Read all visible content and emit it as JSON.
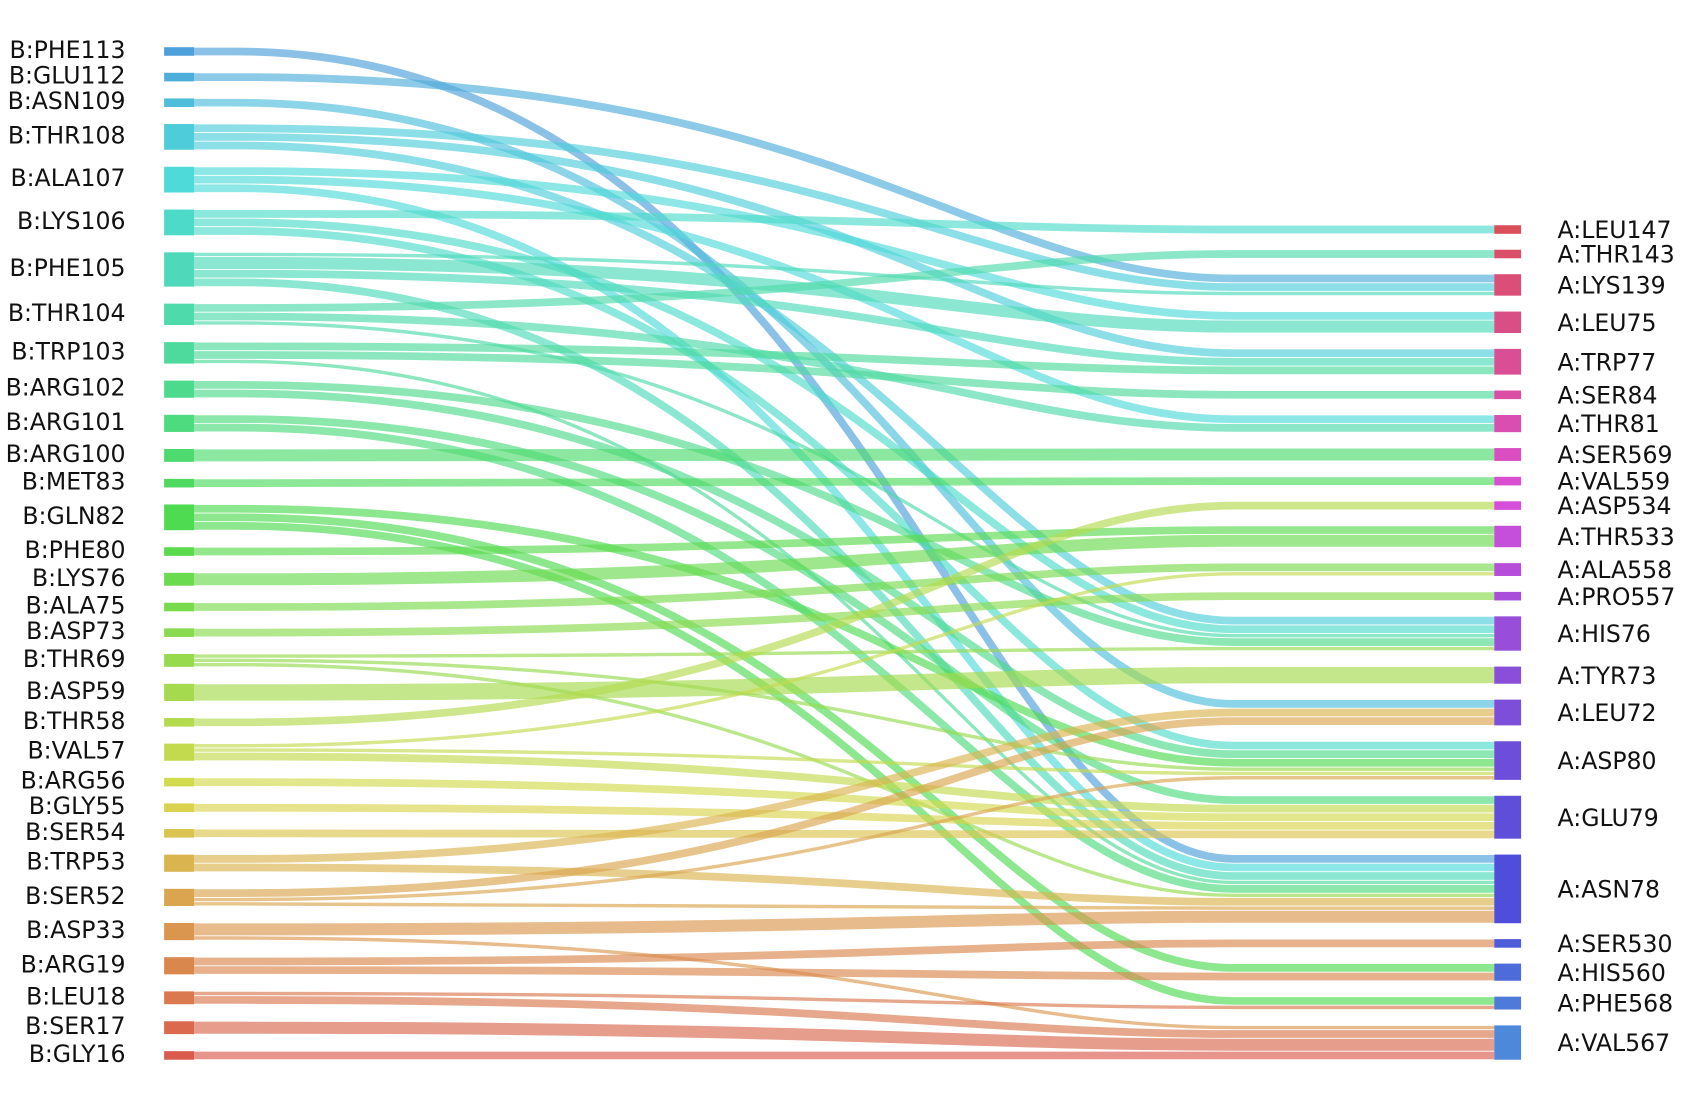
{
  "left_nodes": [
    {
      "label": "B:PHE113"
    },
    {
      "label": "B:GLU112"
    },
    {
      "label": "B:ASN109"
    },
    {
      "label": "B:THR108"
    },
    {
      "label": "B:ALA107"
    },
    {
      "label": "B:LYS106"
    },
    {
      "label": "B:PHE105"
    },
    {
      "label": "B:THR104"
    },
    {
      "label": "B:TRP103"
    },
    {
      "label": "B:ARG102"
    },
    {
      "label": "B:ARG101"
    },
    {
      "label": "B:ARG100"
    },
    {
      "label": "B:MET83"
    },
    {
      "label": "B:GLN82"
    },
    {
      "label": "B:PHE80"
    },
    {
      "label": "B:LYS76"
    },
    {
      "label": "B:ALA75"
    },
    {
      "label": "B:ASP73"
    },
    {
      "label": "B:THR69"
    },
    {
      "label": "B:ASP59"
    },
    {
      "label": "B:THR58"
    },
    {
      "label": "B:VAL57"
    },
    {
      "label": "B:ARG56"
    },
    {
      "label": "B:GLY55"
    },
    {
      "label": "B:SER54"
    },
    {
      "label": "B:TRP53"
    },
    {
      "label": "B:SER52"
    },
    {
      "label": "B:ASP33"
    },
    {
      "label": "B:ARG19"
    },
    {
      "label": "B:LEU18"
    },
    {
      "label": "B:SER17"
    },
    {
      "label": "B:GLY16"
    }
  ],
  "right_nodes": [
    {
      "label": "A:LEU147"
    },
    {
      "label": "A:THR143"
    },
    {
      "label": "A:LYS139"
    },
    {
      "label": "A:LEU75"
    },
    {
      "label": "A:TRP77"
    },
    {
      "label": "A:SER84"
    },
    {
      "label": "A:THR81"
    },
    {
      "label": "A:SER569"
    },
    {
      "label": "A:VAL559"
    },
    {
      "label": "A:ASP534"
    },
    {
      "label": "A:THR533"
    },
    {
      "label": "A:ALA558"
    },
    {
      "label": "A:PRO557"
    },
    {
      "label": "A:HIS76"
    },
    {
      "label": "A:TYR73"
    },
    {
      "label": "A:LEU72"
    },
    {
      "label": "A:ASP80"
    },
    {
      "label": "A:GLU79"
    },
    {
      "label": "A:ASN78"
    },
    {
      "label": "A:SER530"
    },
    {
      "label": "A:HIS560"
    },
    {
      "label": "A:PHE568"
    },
    {
      "label": "A:VAL567"
    }
  ],
  "links": [
    {
      "from": "B:PHE113",
      "to": "A:ASN78",
      "weight": 2
    },
    {
      "from": "B:GLU112",
      "to": "A:LYS139",
      "weight": 2
    },
    {
      "from": "B:ASN109",
      "to": "A:LEU72",
      "weight": 2
    },
    {
      "from": "B:THR108",
      "to": "A:LYS139",
      "weight": 2
    },
    {
      "from": "B:THR108",
      "to": "A:TRP77",
      "weight": 2
    },
    {
      "from": "B:THR108",
      "to": "A:HIS76",
      "weight": 2
    },
    {
      "from": "B:ALA107",
      "to": "A:LEU75",
      "weight": 2
    },
    {
      "from": "B:ALA107",
      "to": "A:THR81",
      "weight": 2
    },
    {
      "from": "B:ALA107",
      "to": "A:ASN78",
      "weight": 2
    },
    {
      "from": "B:LYS106",
      "to": "A:LEU147",
      "weight": 2
    },
    {
      "from": "B:LYS106",
      "to": "A:HIS76",
      "weight": 2
    },
    {
      "from": "B:LYS106",
      "to": "A:ASP80",
      "weight": 2
    },
    {
      "from": "B:PHE105",
      "to": "A:LYS139",
      "weight": 1
    },
    {
      "from": "B:PHE105",
      "to": "A:LEU75",
      "weight": 3
    },
    {
      "from": "B:PHE105",
      "to": "A:TRP77",
      "weight": 2
    },
    {
      "from": "B:PHE105",
      "to": "A:ASN78",
      "weight": 2
    },
    {
      "from": "B:THR104",
      "to": "A:THR143",
      "weight": 2
    },
    {
      "from": "B:THR104",
      "to": "A:THR81",
      "weight": 2
    },
    {
      "from": "B:THR104",
      "to": "A:HIS76",
      "weight": 1
    },
    {
      "from": "B:TRP103",
      "to": "A:TRP77",
      "weight": 2
    },
    {
      "from": "B:TRP103",
      "to": "A:SER84",
      "weight": 2
    },
    {
      "from": "B:TRP103",
      "to": "A:ASN78",
      "weight": 1
    },
    {
      "from": "B:ARG102",
      "to": "A:HIS76",
      "weight": 2
    },
    {
      "from": "B:ARG102",
      "to": "A:ASP80",
      "weight": 2
    },
    {
      "from": "B:ARG101",
      "to": "A:ASN78",
      "weight": 2
    },
    {
      "from": "B:ARG101",
      "to": "A:GLU79",
      "weight": 2
    },
    {
      "from": "B:ARG100",
      "to": "A:SER569",
      "weight": 3
    },
    {
      "from": "B:MET83",
      "to": "A:VAL559",
      "weight": 2
    },
    {
      "from": "B:GLN82",
      "to": "A:ASP80",
      "weight": 2
    },
    {
      "from": "B:GLN82",
      "to": "A:HIS560",
      "weight": 2
    },
    {
      "from": "B:GLN82",
      "to": "A:PHE568",
      "weight": 2
    },
    {
      "from": "B:PHE80",
      "to": "A:THR533",
      "weight": 2
    },
    {
      "from": "B:LYS76",
      "to": "A:THR533",
      "weight": 3
    },
    {
      "from": "B:ALA75",
      "to": "A:ALA558",
      "weight": 2
    },
    {
      "from": "B:ASP73",
      "to": "A:PRO557",
      "weight": 2
    },
    {
      "from": "B:THR69",
      "to": "A:HIS76",
      "weight": 1
    },
    {
      "from": "B:THR69",
      "to": "A:ASP80",
      "weight": 1
    },
    {
      "from": "B:THR69",
      "to": "A:ASN78",
      "weight": 1
    },
    {
      "from": "B:ASP59",
      "to": "A:TYR73",
      "weight": 4
    },
    {
      "from": "B:THR58",
      "to": "A:ASP534",
      "weight": 2
    },
    {
      "from": "B:VAL57",
      "to": "A:ALA558",
      "weight": 1
    },
    {
      "from": "B:VAL57",
      "to": "A:GLU79",
      "weight": 2
    },
    {
      "from": "B:VAL57",
      "to": "A:ASP80",
      "weight": 1
    },
    {
      "from": "B:ARG56",
      "to": "A:GLU79",
      "weight": 2
    },
    {
      "from": "B:GLY55",
      "to": "A:GLU79",
      "weight": 2
    },
    {
      "from": "B:SER54",
      "to": "A:GLU79",
      "weight": 2
    },
    {
      "from": "B:TRP53",
      "to": "A:LEU72",
      "weight": 2
    },
    {
      "from": "B:TRP53",
      "to": "A:ASN78",
      "weight": 2
    },
    {
      "from": "B:SER52",
      "to": "A:ASP80",
      "weight": 1
    },
    {
      "from": "B:SER52",
      "to": "A:LEU72",
      "weight": 2
    },
    {
      "from": "B:SER52",
      "to": "A:ASN78",
      "weight": 1
    },
    {
      "from": "B:ASP33",
      "to": "A:ASN78",
      "weight": 3
    },
    {
      "from": "B:ASP33",
      "to": "A:VAL567",
      "weight": 1
    },
    {
      "from": "B:ARG19",
      "to": "A:SER530",
      "weight": 2
    },
    {
      "from": "B:ARG19",
      "to": "A:HIS560",
      "weight": 2
    },
    {
      "from": "B:LEU18",
      "to": "A:PHE568",
      "weight": 1
    },
    {
      "from": "B:LEU18",
      "to": "A:VAL567",
      "weight": 2
    },
    {
      "from": "B:SER17",
      "to": "A:VAL567",
      "weight": 3
    },
    {
      "from": "B:GLY16",
      "to": "A:VAL567",
      "weight": 2
    }
  ]
}
